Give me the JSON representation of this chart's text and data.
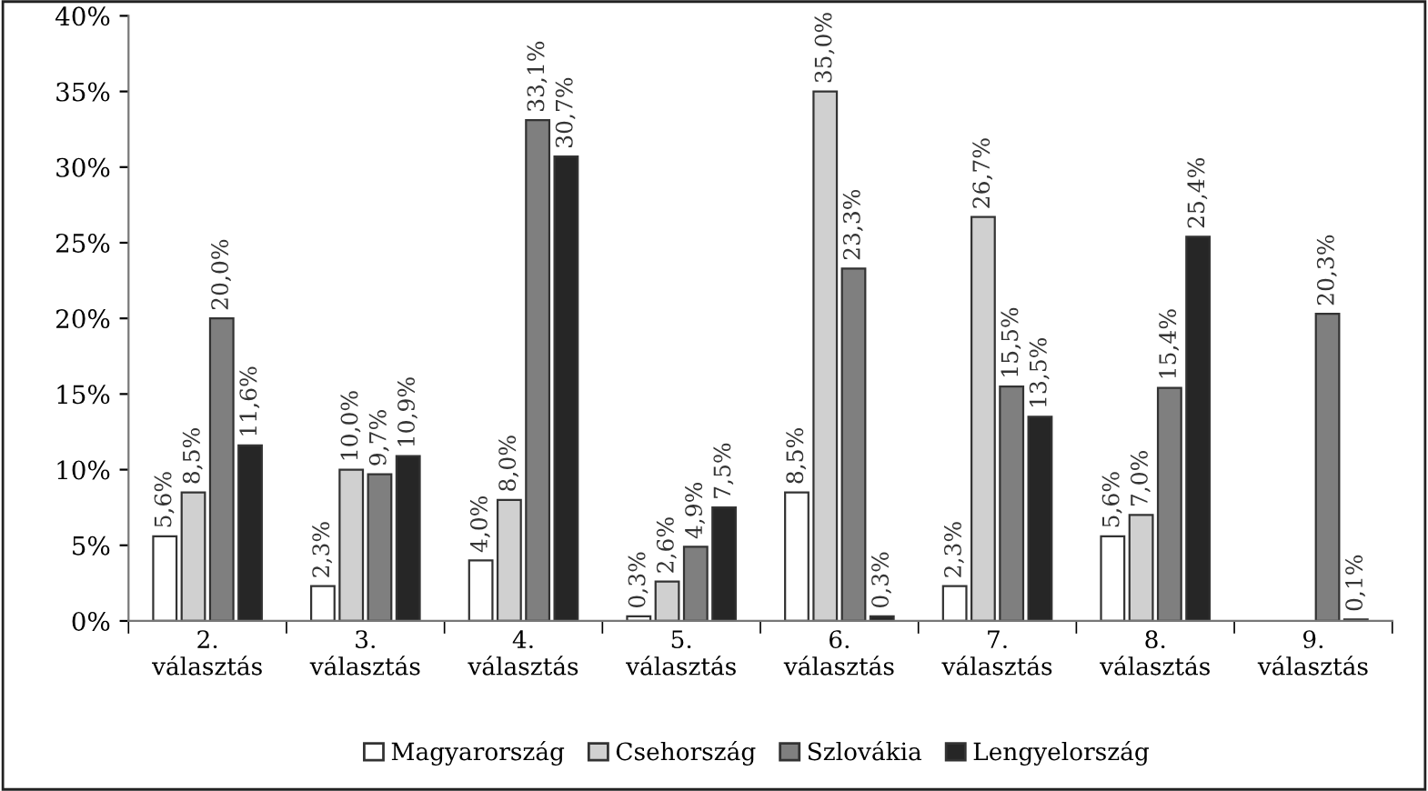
{
  "chart_data": {
    "type": "bar",
    "categories": [
      "2.\nválasztás",
      "3.\nválasztás",
      "4.\nválasztás",
      "5.\nválasztás",
      "6.\nválasztás",
      "7.\nválasztás",
      "8.\nválasztás",
      "9.\nválasztás"
    ],
    "series": [
      {
        "name": "Magyarország",
        "color": "#ffffff",
        "values": [
          5.6,
          2.3,
          4.0,
          0.3,
          8.5,
          2.3,
          5.6,
          null
        ],
        "value_labels": [
          "5,6%",
          "2,3%",
          "4,0%",
          "0,3%",
          "8,5%",
          "2,3%",
          "5,6%",
          null
        ]
      },
      {
        "name": "Csehország",
        "color": "#d0d0d0",
        "values": [
          8.5,
          10.0,
          8.0,
          2.6,
          35.0,
          26.7,
          7.0,
          null
        ],
        "value_labels": [
          "8,5%",
          "10,0%",
          "8,0%",
          "2,6%",
          "35,0%",
          "26,7%",
          "7,0%",
          null
        ]
      },
      {
        "name": "Szlovákia",
        "color": "#7f7f7f",
        "values": [
          20.0,
          9.7,
          33.1,
          4.9,
          23.3,
          15.5,
          15.4,
          20.3
        ],
        "value_labels": [
          "20,0%",
          "9,7%",
          "33,1%",
          "4,9%",
          "23,3%",
          "15,5%",
          "15,4%",
          "20,3%"
        ]
      },
      {
        "name": "Lengyelország",
        "color": "#262626",
        "values": [
          11.6,
          10.9,
          30.7,
          7.5,
          0.3,
          13.5,
          25.4,
          0.1
        ],
        "value_labels": [
          "11,6%",
          "10,9%",
          "30,7%",
          "7,5%",
          "0,3%",
          "13,5%",
          "25,4%",
          "0,1%"
        ]
      }
    ],
    "ylim": [
      0,
      40
    ],
    "yticks": [
      {
        "value": 0,
        "label": "0%"
      },
      {
        "value": 5,
        "label": "5%"
      },
      {
        "value": 10,
        "label": "10%"
      },
      {
        "value": 15,
        "label": "15%"
      },
      {
        "value": 20,
        "label": "20%"
      },
      {
        "value": 25,
        "label": "25%"
      },
      {
        "value": 30,
        "label": "30%"
      },
      {
        "value": 35,
        "label": "35%"
      },
      {
        "value": 40,
        "label": "40%"
      }
    ],
    "legend": "bottom",
    "grid": false
  }
}
